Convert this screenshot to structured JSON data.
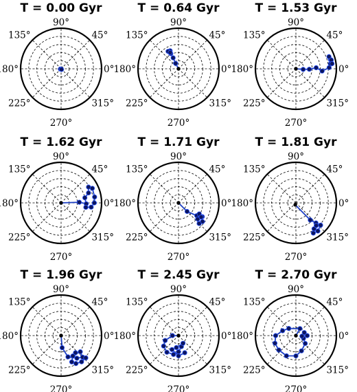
{
  "chart_data": [
    {
      "type": "polar-scatter",
      "title": "T = 0.00 Gyr",
      "theta_ticks": [
        "90°",
        "45°",
        "0°",
        "315°",
        "270°",
        "225°",
        "180°",
        "135°"
      ],
      "rgrid": [
        0.2,
        0.4,
        0.6,
        0.8,
        1.0
      ],
      "rlim": [
        0,
        1
      ],
      "points": [
        {
          "theta": 45,
          "r": 0.02
        },
        {
          "theta": 200,
          "r": 0.02
        },
        {
          "theta": 300,
          "r": 0.02
        }
      ]
    },
    {
      "type": "polar-scatter",
      "title": "T = 0.64 Gyr",
      "theta_ticks": [
        "90°",
        "45°",
        "0°",
        "315°",
        "270°",
        "225°",
        "180°",
        "135°"
      ],
      "rgrid": [
        0.2,
        0.4,
        0.6,
        0.8,
        1.0
      ],
      "rlim": [
        0,
        1
      ],
      "points": [
        {
          "theta": 0,
          "r": 0
        },
        {
          "theta": 118,
          "r": 0.15
        },
        {
          "theta": 116,
          "r": 0.3
        },
        {
          "theta": 117,
          "r": 0.42
        },
        {
          "theta": 119,
          "r": 0.47
        },
        {
          "theta": 115,
          "r": 0.49
        },
        {
          "theta": 121,
          "r": 0.5
        },
        {
          "theta": 117,
          "r": 0.45
        }
      ]
    },
    {
      "type": "polar-scatter",
      "title": "T = 1.53 Gyr",
      "theta_ticks": [
        "90°",
        "45°",
        "0°",
        "315°",
        "270°",
        "225°",
        "180°",
        "135°"
      ],
      "rgrid": [
        0.2,
        0.4,
        0.6,
        0.8,
        1.0
      ],
      "rlim": [
        0,
        1
      ],
      "points": [
        {
          "theta": 0,
          "r": 0
        },
        {
          "theta": 355,
          "r": 0.18
        },
        {
          "theta": 358,
          "r": 0.33
        },
        {
          "theta": 3,
          "r": 0.5
        },
        {
          "theta": 355,
          "r": 0.65
        },
        {
          "theta": 2,
          "r": 0.82
        },
        {
          "theta": 8,
          "r": 0.86
        },
        {
          "theta": 15,
          "r": 0.88
        },
        {
          "theta": 20,
          "r": 0.87
        },
        {
          "theta": 14,
          "r": 0.9
        },
        {
          "theta": 8,
          "r": 0.9
        }
      ]
    },
    {
      "type": "polar-scatter",
      "title": "T = 1.62 Gyr",
      "theta_ticks": [
        "90°",
        "45°",
        "0°",
        "315°",
        "270°",
        "225°",
        "180°",
        "135°"
      ],
      "rgrid": [
        0.2,
        0.4,
        0.6,
        0.8,
        1.0
      ],
      "rlim": [
        0,
        1
      ],
      "points": [
        {
          "theta": 0,
          "r": 0
        },
        {
          "theta": 2,
          "r": 0.45
        },
        {
          "theta": 358,
          "r": 0.62
        },
        {
          "theta": 12,
          "r": 0.6
        },
        {
          "theta": 20,
          "r": 0.72
        },
        {
          "theta": 30,
          "r": 0.78
        },
        {
          "theta": 25,
          "r": 0.85
        },
        {
          "theta": 10,
          "r": 0.84
        },
        {
          "theta": 0,
          "r": 0.82
        },
        {
          "theta": -8,
          "r": 0.75
        },
        {
          "theta": -10,
          "r": 0.62
        }
      ]
    },
    {
      "type": "polar-scatter",
      "title": "T = 1.71 Gyr",
      "theta_ticks": [
        "90°",
        "45°",
        "0°",
        "315°",
        "270°",
        "225°",
        "180°",
        "135°"
      ],
      "rgrid": [
        0.2,
        0.4,
        0.6,
        0.8,
        1.0
      ],
      "rlim": [
        0,
        1
      ],
      "points": [
        {
          "theta": 0,
          "r": 0
        },
        {
          "theta": -45,
          "r": 0.3
        },
        {
          "theta": -35,
          "r": 0.55
        },
        {
          "theta": -30,
          "r": 0.68
        },
        {
          "theta": -38,
          "r": 0.75
        },
        {
          "theta": -45,
          "r": 0.72
        },
        {
          "theta": -40,
          "r": 0.62
        },
        {
          "theta": -28,
          "r": 0.58
        },
        {
          "theta": -32,
          "r": 0.66
        }
      ]
    },
    {
      "type": "polar-scatter",
      "title": "T = 1.81 Gyr",
      "theta_ticks": [
        "90°",
        "45°",
        "0°",
        "315°",
        "270°",
        "225°",
        "180°",
        "135°"
      ],
      "rgrid": [
        0.2,
        0.4,
        0.6,
        0.8,
        1.0
      ],
      "rlim": [
        0,
        1
      ],
      "points": [
        {
          "theta": -110,
          "r": 0.05
        },
        {
          "theta": -50,
          "r": 0.55
        },
        {
          "theta": -45,
          "r": 0.7
        },
        {
          "theta": -42,
          "r": 0.82
        },
        {
          "theta": -52,
          "r": 0.88
        },
        {
          "theta": -60,
          "r": 0.86
        },
        {
          "theta": -55,
          "r": 0.78
        },
        {
          "theta": -48,
          "r": 0.75
        }
      ]
    },
    {
      "type": "polar-scatter",
      "title": "T = 1.96 Gyr",
      "theta_ticks": [
        "90°",
        "45°",
        "0°",
        "315°",
        "270°",
        "225°",
        "180°",
        "135°"
      ],
      "rgrid": [
        0.2,
        0.4,
        0.6,
        0.8,
        1.0
      ],
      "rlim": [
        0,
        1
      ],
      "points": [
        {
          "theta": 0,
          "r": 0
        },
        {
          "theta": -85,
          "r": 0.3
        },
        {
          "theta": -72,
          "r": 0.55
        },
        {
          "theta": -55,
          "r": 0.68
        },
        {
          "theta": -45,
          "r": 0.75
        },
        {
          "theta": -40,
          "r": 0.62
        },
        {
          "theta": -50,
          "r": 0.55
        },
        {
          "theta": -60,
          "r": 0.58
        },
        {
          "theta": -68,
          "r": 0.7
        },
        {
          "theta": -62,
          "r": 0.78
        },
        {
          "theta": -52,
          "r": 0.82
        },
        {
          "theta": -42,
          "r": 0.82
        }
      ]
    },
    {
      "type": "polar-scatter",
      "title": "T = 2.45 Gyr",
      "theta_ticks": [
        "90°",
        "45°",
        "0°",
        "315°",
        "270°",
        "225°",
        "180°",
        "135°"
      ],
      "rgrid": [
        0.2,
        0.4,
        0.6,
        0.8,
        1.0
      ],
      "rlim": [
        0,
        1
      ],
      "points": [
        {
          "theta": 0,
          "r": 0
        },
        {
          "theta": 180,
          "r": 0.15
        },
        {
          "theta": 200,
          "r": 0.35
        },
        {
          "theta": 215,
          "r": 0.45
        },
        {
          "theta": 235,
          "r": 0.5
        },
        {
          "theta": 255,
          "r": 0.48
        },
        {
          "theta": 270,
          "r": 0.4
        },
        {
          "theta": 285,
          "r": 0.28
        },
        {
          "theta": 300,
          "r": 0.22
        },
        {
          "theta": 260,
          "r": 0.3
        },
        {
          "theta": 245,
          "r": 0.38
        },
        {
          "theta": 270,
          "r": 0.5
        },
        {
          "theta": 290,
          "r": 0.45
        }
      ]
    },
    {
      "type": "polar-scatter",
      "title": "T = 2.70 Gyr",
      "theta_ticks": [
        "90°",
        "45°",
        "0°",
        "315°",
        "270°",
        "225°",
        "180°",
        "135°"
      ],
      "rgrid": [
        0.2,
        0.4,
        0.6,
        0.8,
        1.0
      ],
      "rlim": [
        0,
        1
      ],
      "points": [
        {
          "theta": 0,
          "r": 0
        },
        {
          "theta": 60,
          "r": 0.2
        },
        {
          "theta": 135,
          "r": 0.25
        },
        {
          "theta": 160,
          "r": 0.35
        },
        {
          "theta": 180,
          "r": 0.5
        },
        {
          "theta": 200,
          "r": 0.55
        },
        {
          "theta": 220,
          "r": 0.55
        },
        {
          "theta": 245,
          "r": 0.55
        },
        {
          "theta": 270,
          "r": 0.5
        },
        {
          "theta": 290,
          "r": 0.4
        },
        {
          "theta": 320,
          "r": 0.3
        },
        {
          "theta": 340,
          "r": 0.2
        },
        {
          "theta": 355,
          "r": 0.15
        },
        {
          "theta": 20,
          "r": 0.22
        },
        {
          "theta": 0,
          "r": 0.28
        }
      ]
    }
  ]
}
